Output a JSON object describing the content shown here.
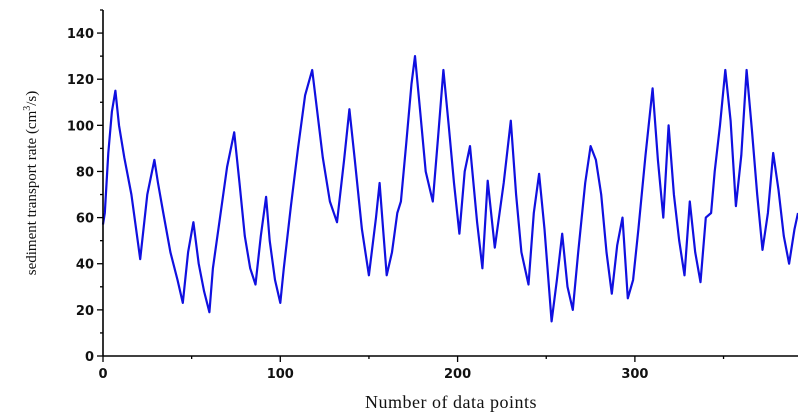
{
  "chart_data": {
    "type": "line",
    "title": "",
    "xlabel": "Number of data points",
    "ylabel": {
      "prefix": "sediment transport rate (cm",
      "sup": "3",
      "suffix": "/s)"
    },
    "xlim": [
      0,
      392
    ],
    "ylim": [
      0,
      150
    ],
    "xticks": [
      0,
      100,
      200,
      300
    ],
    "yticks": [
      0,
      20,
      40,
      60,
      80,
      100,
      120,
      140
    ],
    "grid": false,
    "legend": "none",
    "series": [
      {
        "color": "#1010e0",
        "x": [
          0,
          1,
          3,
          5,
          7,
          9,
          12,
          16,
          21,
          25,
          29,
          31,
          34,
          38,
          42,
          45,
          48,
          51,
          54,
          57,
          60,
          62,
          66,
          70,
          74,
          77,
          80,
          83,
          86,
          89,
          92,
          94,
          97,
          100,
          102,
          106,
          110,
          114,
          118,
          121,
          124,
          128,
          132,
          136,
          139,
          142,
          146,
          150,
          154,
          156,
          158,
          160,
          163,
          166,
          168,
          171,
          174,
          176,
          179,
          182,
          186,
          189,
          192,
          195,
          198,
          201,
          204,
          207,
          211,
          214,
          217,
          221,
          226,
          230,
          233,
          236,
          240,
          243,
          246,
          249,
          253,
          256,
          259,
          262,
          265,
          268,
          272,
          275,
          278,
          281,
          284,
          287,
          290,
          293,
          296,
          299,
          302,
          306,
          310,
          313,
          316,
          319,
          322,
          325,
          328,
          331,
          334,
          337,
          340,
          343,
          345,
          348,
          351,
          354,
          357,
          360,
          363,
          366,
          369,
          372,
          375,
          378,
          381,
          384,
          387,
          390,
          392
        ],
        "y": [
          57,
          62,
          88,
          106,
          115,
          100,
          86,
          70,
          42,
          70,
          85,
          75,
          62,
          45,
          33,
          23,
          45,
          58,
          40,
          28,
          19,
          38,
          60,
          82,
          97,
          75,
          52,
          38,
          31,
          52,
          69,
          50,
          33,
          23,
          38,
          65,
          90,
          113,
          124,
          105,
          86,
          67,
          58,
          85,
          107,
          85,
          55,
          35,
          60,
          75,
          55,
          35,
          45,
          62,
          67,
          92,
          118,
          130,
          105,
          80,
          67,
          95,
          124,
          100,
          75,
          53,
          80,
          91,
          58,
          38,
          76,
          47,
          75,
          102,
          70,
          45,
          31,
          62,
          79,
          55,
          15,
          33,
          53,
          30,
          20,
          45,
          75,
          91,
          85,
          70,
          45,
          27,
          48,
          60,
          25,
          33,
          55,
          87,
          116,
          85,
          60,
          100,
          70,
          50,
          35,
          67,
          45,
          32,
          60,
          62,
          80,
          100,
          124,
          102,
          65,
          87,
          124,
          98,
          70,
          46,
          62,
          88,
          72,
          52,
          40,
          55,
          62
        ]
      }
    ]
  }
}
